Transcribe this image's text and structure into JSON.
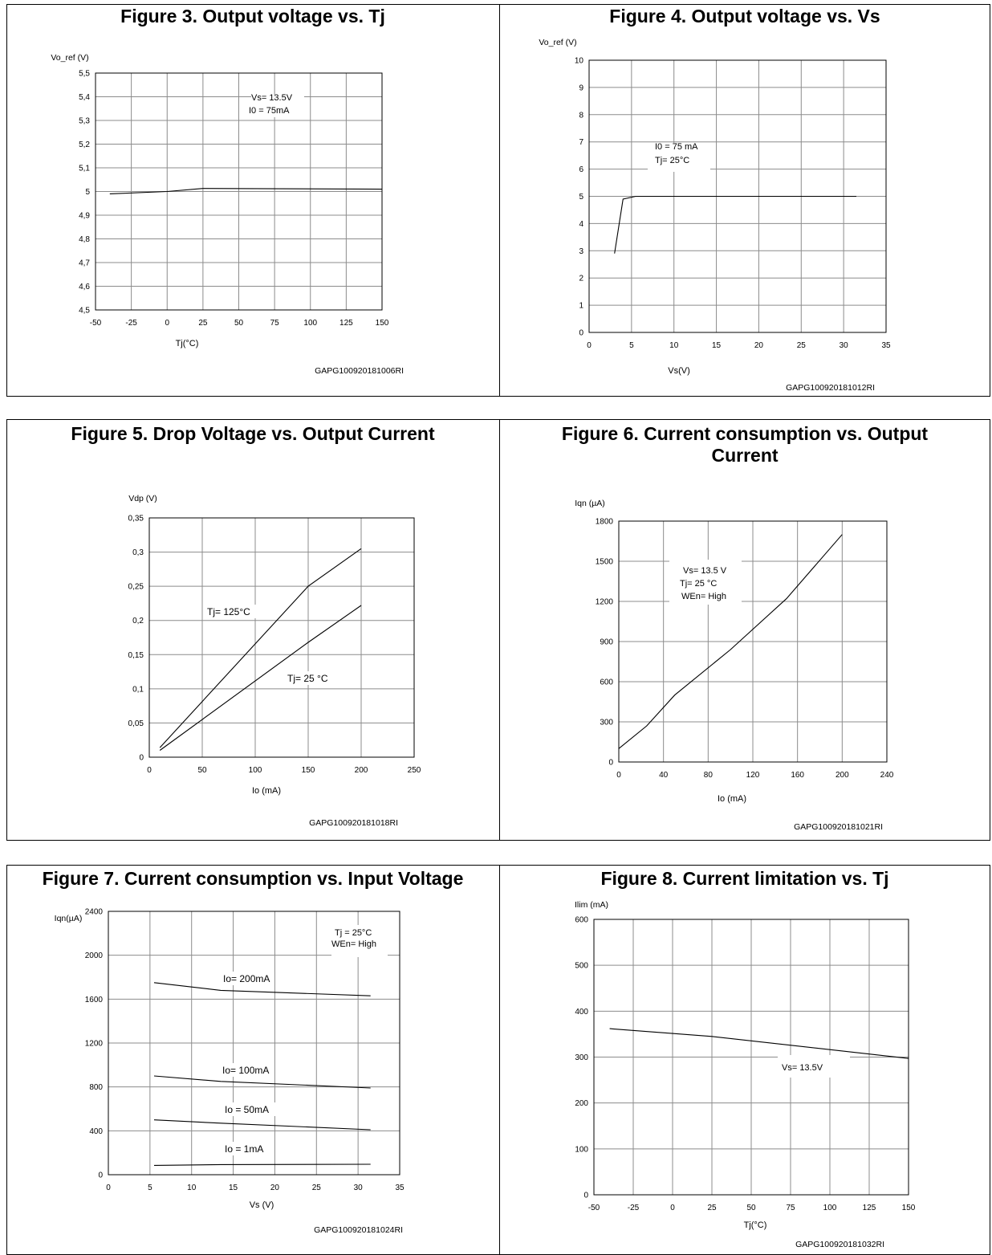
{
  "chart_data": [
    {
      "id": "fig3",
      "type": "line",
      "title": "Figure 3. Output voltage vs. Tj",
      "ylabel": "Vo_ref (V)",
      "xlabel": "Tj(°C)",
      "xlim": [
        -50,
        150
      ],
      "ylim": [
        4.5,
        5.5
      ],
      "xticks": [
        "-50",
        "-25",
        "0",
        "25",
        "50",
        "75",
        "100",
        "125",
        "150"
      ],
      "yticks": [
        "4,5",
        "4,6",
        "4,7",
        "4,8",
        "4,9",
        "5",
        "5,1",
        "5,2",
        "5,3",
        "5,4",
        "5,5"
      ],
      "grid": true,
      "legend_text": [
        "Vs= 13.5V",
        "I0 = 75mA"
      ],
      "code": "GAPG100920181006RI",
      "series": [
        {
          "x": [
            -40,
            0,
            25,
            150
          ],
          "y": [
            4.99,
            5.0,
            5.013,
            5.01
          ]
        }
      ]
    },
    {
      "id": "fig4",
      "type": "line",
      "title": "Figure 4. Output voltage vs. Vs",
      "ylabel": "Vo_ref (V)",
      "xlabel": "Vs(V)",
      "xlim": [
        0,
        35
      ],
      "ylim": [
        0,
        10
      ],
      "xticks": [
        "0",
        "5",
        "10",
        "15",
        "20",
        "25",
        "30",
        "35"
      ],
      "yticks": [
        "0",
        "1",
        "2",
        "3",
        "4",
        "5",
        "6",
        "7",
        "8",
        "9",
        "10"
      ],
      "grid": true,
      "legend_text": [
        "I0 = 75 mA",
        "Tj= 25°C"
      ],
      "code": "GAPG100920181012RI",
      "series": [
        {
          "x": [
            3,
            4,
            5.5,
            31.5
          ],
          "y": [
            2.9,
            4.9,
            5.0,
            5.0
          ]
        }
      ]
    },
    {
      "id": "fig5",
      "type": "line",
      "title": "Figure 5. Drop Voltage vs. Output Current",
      "ylabel": "Vdp (V)",
      "xlabel": "Io (mA)",
      "xlim": [
        0,
        250
      ],
      "ylim": [
        0,
        0.35
      ],
      "xticks": [
        "0",
        "50",
        "100",
        "150",
        "200",
        "250"
      ],
      "yticks": [
        "0",
        "0,05",
        "0,1",
        "0,15",
        "0,2",
        "0,25",
        "0,3",
        "0,35"
      ],
      "grid": true,
      "code": "GAPG100920181018RI",
      "series": [
        {
          "name": "Tj= 125°C",
          "x": [
            10,
            150,
            200
          ],
          "y": [
            0.014,
            0.25,
            0.305
          ]
        },
        {
          "name": "Tj= 25 °C",
          "x": [
            10,
            150,
            200
          ],
          "y": [
            0.01,
            0.168,
            0.222
          ]
        }
      ]
    },
    {
      "id": "fig6",
      "type": "line",
      "title": "Figure 6. Current consumption vs. Output Current",
      "ylabel": "Iqn (µA)",
      "xlabel": "Io (mA)",
      "xlim": [
        0,
        240
      ],
      "ylim": [
        0,
        1800
      ],
      "xticks": [
        "0",
        "40",
        "80",
        "120",
        "160",
        "200",
        "240"
      ],
      "yticks": [
        "0",
        "300",
        "600",
        "900",
        "1200",
        "1500",
        "1800"
      ],
      "grid": true,
      "legend_text": [
        "Vs= 13.5 V",
        "Tj= 25 °C",
        "WEn= High"
      ],
      "code": "GAPG100920181021RI",
      "series": [
        {
          "x": [
            0,
            25,
            50,
            100,
            150,
            200
          ],
          "y": [
            100,
            270,
            500,
            840,
            1220,
            1700
          ]
        }
      ]
    },
    {
      "id": "fig7",
      "type": "line",
      "title": "Figure 7. Current consumption vs. Input Voltage",
      "ylabel": "Iqn(µA)",
      "xlabel": "Vs (V)",
      "xlim": [
        0,
        35
      ],
      "ylim": [
        0,
        2400
      ],
      "xticks": [
        "0",
        "5",
        "10",
        "15",
        "20",
        "25",
        "30",
        "35"
      ],
      "yticks": [
        "0",
        "400",
        "800",
        "1200",
        "1600",
        "2000",
        "2400"
      ],
      "grid": true,
      "legend_text": [
        "Tj = 25°C",
        "WEn= High"
      ],
      "code": "GAPG100920181024RI",
      "series": [
        {
          "name": "Io= 200mA",
          "x": [
            5.5,
            13.5,
            31.5
          ],
          "y": [
            1750,
            1680,
            1630
          ]
        },
        {
          "name": "Io= 100mA",
          "x": [
            5.5,
            13.5,
            31.5
          ],
          "y": [
            900,
            850,
            790
          ]
        },
        {
          "name": "Io = 50mA",
          "x": [
            5.5,
            13.5,
            31.5
          ],
          "y": [
            500,
            470,
            410
          ]
        },
        {
          "name": "Io = 1mA",
          "x": [
            5.5,
            13.5,
            31.5
          ],
          "y": [
            85,
            92,
            95
          ]
        }
      ]
    },
    {
      "id": "fig8",
      "type": "line",
      "title": "Figure 8. Current limitation vs. Tj",
      "ylabel": "Ilim (mA)",
      "xlabel": "Tj(°C)",
      "xlim": [
        -50,
        150
      ],
      "ylim": [
        0,
        600
      ],
      "xticks": [
        "-50",
        "-25",
        "0",
        "25",
        "50",
        "75",
        "100",
        "125",
        "150"
      ],
      "yticks": [
        "0",
        "100",
        "200",
        "300",
        "400",
        "500",
        "600"
      ],
      "grid": true,
      "legend_text": [
        "Vs= 13.5V"
      ],
      "code": "GAPG100920181032RI",
      "series": [
        {
          "x": [
            -40,
            25,
            150
          ],
          "y": [
            362,
            345,
            297
          ]
        }
      ]
    }
  ]
}
